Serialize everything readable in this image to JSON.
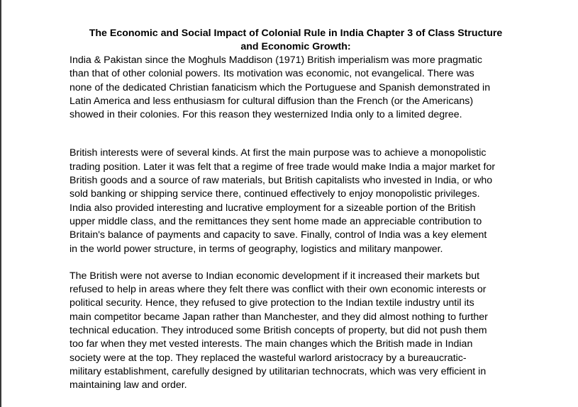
{
  "document": {
    "title": "The Economic and Social Impact of Colonial Rule in India Chapter 3 of Class Structure\nand Economic Growth:",
    "paragraphs": [
      "India & Pakistan since the Moghuls Maddison (1971) British imperialism was more pragmatic\nthan that of other colonial powers. Its motivation was economic, not evangelical. There was\nnone of the dedicated Christian fanaticism which the Portuguese and Spanish demonstrated in\nLatin America and less enthusiasm for cultural diffusion than the French (or the Americans)\nshowed in their colonies. For this reason they westernized India only to a limited degree.",
      "British interests were of several kinds. At first the main purpose was to achieve a monopolistic\ntrading position. Later it was felt that a regime of free trade would make India a major market for\nBritish goods and a source of raw materials, but British capitalists who invested in India, or who\nsold banking or shipping service there, continued effectively to enjoy monopolistic privileges.\nIndia also provided interesting and lucrative employment for a sizeable portion of the British\nupper middle class, and the remittances they sent home made an appreciable contribution to\nBritain's balance of payments and capacity to save. Finally, control of India was a key element\nin the world power structure, in terms of geography, logistics and military manpower.",
      "The British were not averse to Indian economic development if it increased their markets but\nrefused to help in areas where they felt there was conflict with their own economic interests or\npolitical security. Hence, they refused to give protection to the Indian textile industry until its\nmain competitor became Japan rather than Manchester, and they did almost nothing to further\ntechnical education. They introduced some British concepts of property, but did not push them\ntoo far when they met vested interests. The main changes which the British made in Indian\nsociety were at the top. They replaced the wasteful warlord aristocracy by a bureaucratic-\nmilitary establishment, carefully designed by utilitarian technocrats, which was very efficient in\nmaintaining law and order."
    ]
  }
}
